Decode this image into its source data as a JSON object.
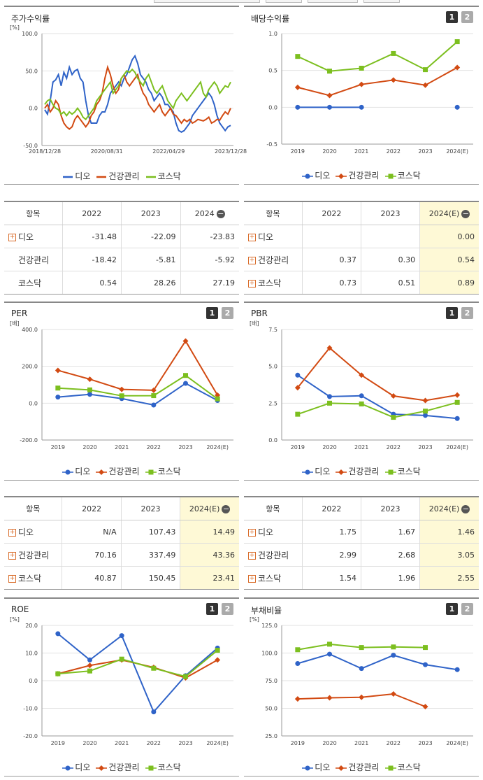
{
  "colors": {
    "dio": "#2f63c8",
    "health": "#d24a12",
    "kosdaq": "#7cbf1f"
  },
  "legend": [
    "디오",
    "건강관리",
    "코스닥"
  ],
  "page_buttons": [
    "1",
    "2"
  ],
  "panels": {
    "stock_return": {
      "title": "주가수익률",
      "chart_data": {
        "type": "line",
        "unit": "[%]",
        "ylim": [
          -50,
          100
        ],
        "yticks": [
          "100.0",
          "50.0",
          "0.0",
          "-50.0"
        ],
        "xticks": [
          "2018/12/28",
          "2020/08/31",
          "2022/04/29",
          "2023/12/28"
        ],
        "series": [
          {
            "name": "디오",
            "values": [
              -2,
              -8,
              10,
              35,
              38,
              45,
              30,
              48,
              40,
              55,
              45,
              50,
              52,
              40,
              35,
              10,
              -10,
              -20,
              -20,
              -20,
              -10,
              -5,
              -5,
              5,
              20,
              25,
              30,
              35,
              30,
              40,
              45,
              55,
              65,
              70,
              60,
              45,
              40,
              35,
              25,
              20,
              10,
              15,
              20,
              15,
              5,
              5,
              0,
              -5,
              -20,
              -30,
              -32,
              -30,
              -25,
              -20,
              -10,
              -5,
              0,
              5,
              10,
              15,
              20,
              15,
              5,
              -10,
              -20,
              -25,
              -30,
              -25,
              -23
            ]
          },
          {
            "name": "건강관리",
            "values": [
              0,
              5,
              -5,
              0,
              10,
              5,
              -10,
              -20,
              -25,
              -28,
              -25,
              -15,
              -10,
              -15,
              -20,
              -25,
              -20,
              -10,
              -5,
              5,
              10,
              20,
              40,
              55,
              45,
              30,
              20,
              25,
              40,
              45,
              35,
              30,
              35,
              40,
              45,
              30,
              20,
              15,
              5,
              0,
              -5,
              0,
              5,
              -5,
              -10,
              -5,
              0,
              -8,
              -10,
              -15,
              -20,
              -15,
              -18,
              -15,
              -20,
              -18,
              -15,
              -16,
              -17,
              -15,
              -12,
              -20,
              -18,
              -15,
              -16,
              -10,
              -5,
              -8,
              0
            ]
          },
          {
            "name": "코스닥",
            "values": [
              5,
              10,
              12,
              5,
              0,
              -2,
              -8,
              -5,
              -10,
              -5,
              -8,
              -5,
              0,
              -5,
              -12,
              -15,
              -10,
              -5,
              0,
              10,
              15,
              20,
              25,
              30,
              35,
              20,
              25,
              30,
              40,
              45,
              50,
              48,
              52,
              48,
              40,
              35,
              30,
              40,
              45,
              35,
              25,
              20,
              25,
              30,
              20,
              10,
              5,
              0,
              10,
              15,
              20,
              15,
              10,
              15,
              20,
              25,
              30,
              35,
              20,
              15,
              25,
              30,
              35,
              30,
              20,
              25,
              30,
              28,
              35
            ]
          }
        ]
      }
    },
    "dividend": {
      "title": "배당수익률",
      "chart_data": {
        "type": "line",
        "ylim": [
          -0.5,
          1.0
        ],
        "yticks": [
          "1.0",
          "0.5",
          "0.0",
          "-0.5"
        ],
        "categories": [
          "2019",
          "2020",
          "2021",
          "2022",
          "2023",
          "2024(E)"
        ],
        "series": [
          {
            "name": "디오",
            "values": [
              0.0,
              0.0,
              0.0,
              null,
              null,
              0.0
            ]
          },
          {
            "name": "건강관리",
            "values": [
              0.27,
              0.16,
              0.31,
              0.37,
              0.3,
              0.54
            ]
          },
          {
            "name": "코스닥",
            "values": [
              0.69,
              0.49,
              0.53,
              0.73,
              0.51,
              0.89
            ]
          }
        ]
      }
    },
    "per": {
      "title": "PER",
      "chart_data": {
        "type": "line",
        "unit": "[배]",
        "ylim": [
          -200,
          400
        ],
        "yticks": [
          "400.0",
          "200.0",
          "0.0",
          "-200.0"
        ],
        "categories": [
          "2019",
          "2020",
          "2021",
          "2022",
          "2023",
          "2024(E)"
        ],
        "series": [
          {
            "name": "디오",
            "values": [
              33,
              48,
              25,
              -10,
              107.43,
              14.49
            ]
          },
          {
            "name": "건강관리",
            "values": [
              178,
              130,
              75,
              70.16,
              337.49,
              43.36
            ]
          },
          {
            "name": "코스닥",
            "values": [
              82,
              72,
              40,
              40.87,
              150.45,
              23.41
            ]
          }
        ]
      }
    },
    "pbr": {
      "title": "PBR",
      "chart_data": {
        "type": "line",
        "unit": "[배]",
        "ylim": [
          0,
          7.5
        ],
        "yticks": [
          "7.5",
          "5.0",
          "2.5",
          "0.0"
        ],
        "categories": [
          "2019",
          "2020",
          "2021",
          "2022",
          "2023",
          "2024(E)"
        ],
        "series": [
          {
            "name": "디오",
            "values": [
              4.4,
              2.95,
              3.0,
              1.75,
              1.67,
              1.46
            ]
          },
          {
            "name": "건강관리",
            "values": [
              3.55,
              6.25,
              4.4,
              2.99,
              2.68,
              3.05
            ]
          },
          {
            "name": "코스닥",
            "values": [
              1.75,
              2.5,
              2.45,
              1.54,
              1.96,
              2.55
            ]
          }
        ]
      }
    },
    "roe": {
      "title": "ROE",
      "chart_data": {
        "type": "line",
        "unit": "[%]",
        "ylim": [
          -20,
          20
        ],
        "yticks": [
          "20.0",
          "10.0",
          "0.0",
          "-10.0",
          "-20.0"
        ],
        "categories": [
          "2019",
          "2020",
          "2021",
          "2022",
          "2023",
          "2024(E)"
        ],
        "series": [
          {
            "name": "디오",
            "values": [
              17.0,
              7.5,
              16.3,
              -11.3,
              1.8,
              11.8
            ]
          },
          {
            "name": "건강관리",
            "values": [
              2.5,
              5.5,
              7.5,
              4.8,
              1.0,
              7.5
            ]
          },
          {
            "name": "코스닥",
            "values": [
              2.5,
              3.5,
              7.8,
              4.5,
              1.5,
              11.0
            ]
          }
        ]
      }
    },
    "debt": {
      "title": "부채비율",
      "chart_data": {
        "type": "line",
        "unit": "[%]",
        "ylim": [
          25,
          125
        ],
        "yticks": [
          "125.0",
          "100.0",
          "75.0",
          "50.0",
          "25.0"
        ],
        "categories": [
          "2019",
          "2020",
          "2021",
          "2022",
          "2023",
          "2024(E)"
        ],
        "series": [
          {
            "name": "디오",
            "values": [
              90.5,
              99,
              86,
              98,
              89.5,
              85
            ]
          },
          {
            "name": "건강관리",
            "values": [
              58.5,
              59.5,
              60,
              63,
              51.5,
              null
            ]
          },
          {
            "name": "코스닥",
            "values": [
              103,
              108,
              105,
              105.5,
              105,
              null
            ]
          }
        ]
      }
    }
  },
  "tables": {
    "return_table": {
      "headers": [
        "항목",
        "2022",
        "2023",
        "2024"
      ],
      "rows": [
        {
          "name": "디오",
          "plus": true,
          "values": [
            "-31.48",
            "-22.09",
            "-23.83"
          ]
        },
        {
          "name": "건강관리",
          "plus": false,
          "values": [
            "-18.42",
            "-5.81",
            "-5.92"
          ]
        },
        {
          "name": "코스닥",
          "plus": false,
          "values": [
            "0.54",
            "28.26",
            "27.19"
          ]
        }
      ]
    },
    "dividend_table": {
      "headers": [
        "항목",
        "2022",
        "2023",
        "2024(E)"
      ],
      "rows": [
        {
          "name": "디오",
          "plus": true,
          "values": [
            "",
            "",
            "0.00"
          ]
        },
        {
          "name": "건강관리",
          "plus": true,
          "values": [
            "0.37",
            "0.30",
            "0.54"
          ]
        },
        {
          "name": "코스닥",
          "plus": true,
          "values": [
            "0.73",
            "0.51",
            "0.89"
          ]
        }
      ]
    },
    "per_table": {
      "headers": [
        "항목",
        "2022",
        "2023",
        "2024(E)"
      ],
      "rows": [
        {
          "name": "디오",
          "plus": true,
          "values": [
            "N/A",
            "107.43",
            "14.49"
          ]
        },
        {
          "name": "건강관리",
          "plus": true,
          "values": [
            "70.16",
            "337.49",
            "43.36"
          ]
        },
        {
          "name": "코스닥",
          "plus": true,
          "values": [
            "40.87",
            "150.45",
            "23.41"
          ]
        }
      ]
    },
    "pbr_table": {
      "headers": [
        "항목",
        "2022",
        "2023",
        "2024(E)"
      ],
      "rows": [
        {
          "name": "디오",
          "plus": true,
          "values": [
            "1.75",
            "1.67",
            "1.46"
          ]
        },
        {
          "name": "건강관리",
          "plus": true,
          "values": [
            "2.99",
            "2.68",
            "3.05"
          ]
        },
        {
          "name": "코스닥",
          "plus": true,
          "values": [
            "1.54",
            "1.96",
            "2.55"
          ]
        }
      ]
    }
  }
}
